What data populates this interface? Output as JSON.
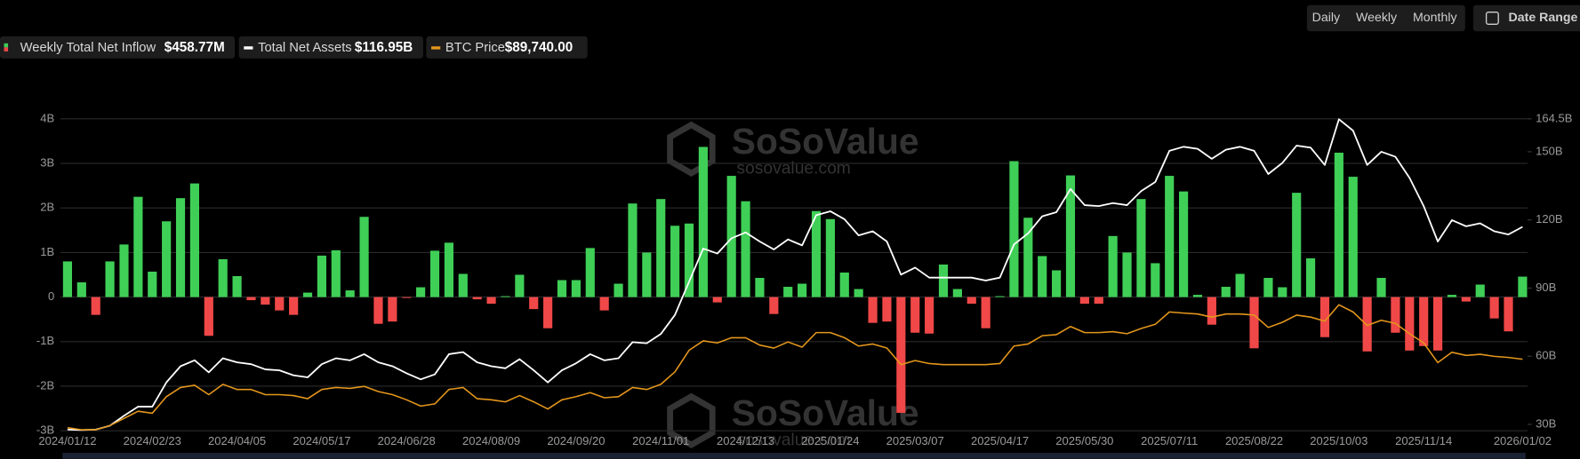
{
  "controls": {
    "intervals": [
      "Daily",
      "Weekly",
      "Monthly"
    ],
    "active_interval": 1,
    "date_range": "Date Range"
  },
  "watermark": {
    "brand": "SoSoValue",
    "site": "sosovalue.com"
  },
  "chart_data": {
    "type": "combo",
    "categories": [
      "2024/01/12",
      null,
      null,
      null,
      null,
      null,
      "2024/02/23",
      null,
      null,
      null,
      null,
      null,
      "2024/04/05",
      null,
      null,
      null,
      null,
      null,
      "2024/05/17",
      null,
      null,
      null,
      null,
      null,
      "2024/06/28",
      null,
      null,
      null,
      null,
      null,
      "2024/08/09",
      null,
      null,
      null,
      null,
      null,
      "2024/09/20",
      null,
      null,
      null,
      null,
      null,
      "2024/11/01",
      null,
      null,
      null,
      null,
      null,
      "2024/12/13",
      null,
      null,
      null,
      null,
      null,
      "2025/01/24",
      null,
      null,
      null,
      null,
      null,
      "2025/03/07",
      null,
      null,
      null,
      null,
      null,
      "2025/04/17",
      null,
      null,
      null,
      null,
      null,
      "2025/05/30",
      null,
      null,
      null,
      null,
      null,
      "2025/07/11",
      null,
      null,
      null,
      null,
      null,
      "2025/08/22",
      null,
      null,
      null,
      null,
      null,
      "2025/10/03",
      null,
      null,
      null,
      null,
      null,
      "2025/11/14",
      null,
      null,
      null,
      null,
      null,
      null,
      "2026/01/02"
    ],
    "series": [
      {
        "name": "Weekly Total Net Inflow",
        "latest_label": "$458.77M",
        "type": "bar",
        "axis": "y",
        "color": "#3fcf57",
        "negative_color": "#f04848",
        "values": [
          0.8,
          0.33,
          -0.4,
          0.8,
          1.18,
          2.25,
          0.57,
          1.7,
          2.22,
          2.55,
          -0.87,
          0.85,
          0.47,
          -0.07,
          -0.17,
          -0.3,
          -0.4,
          0.1,
          0.93,
          1.05,
          0.15,
          1.8,
          -0.6,
          -0.55,
          -0.02,
          0.22,
          1.04,
          1.22,
          0.52,
          -0.05,
          -0.15,
          0.02,
          0.5,
          -0.27,
          -0.7,
          0.38,
          0.38,
          1.1,
          -0.3,
          0.3,
          2.1,
          1.0,
          2.2,
          1.6,
          1.65,
          3.37,
          -0.12,
          2.72,
          2.15,
          0.43,
          -0.38,
          0.23,
          0.3,
          1.93,
          1.75,
          0.55,
          0.18,
          -0.58,
          -0.55,
          -2.6,
          -0.8,
          -0.82,
          0.73,
          0.18,
          -0.15,
          -0.7,
          0.02,
          3.05,
          1.78,
          0.92,
          0.6,
          2.73,
          -0.15,
          -0.15,
          1.37,
          1.0,
          2.2,
          0.76,
          2.72,
          2.37,
          0.05,
          -0.62,
          0.23,
          0.52,
          -1.15,
          0.43,
          0.22,
          2.34,
          0.87,
          -0.9,
          3.24,
          2.7,
          -1.22,
          0.43,
          -0.8,
          -1.2,
          -1.1,
          -1.2,
          0.05,
          -0.1,
          0.28,
          -0.48,
          -0.77,
          0.45877
        ]
      },
      {
        "name": "Total Net Assets",
        "latest_label": "$116.95B",
        "type": "line",
        "axis": "y2",
        "color": "#ffffff",
        "values": [
          27.7,
          27.5,
          27.7,
          29.4,
          33.8,
          37.8,
          37.8,
          48.5,
          55.6,
          58.2,
          52.9,
          59.1,
          57.3,
          56.5,
          54.2,
          53.8,
          51.6,
          50.7,
          56.5,
          59.1,
          58.2,
          60.9,
          57.3,
          55.6,
          52.5,
          49.8,
          52.0,
          60.9,
          61.8,
          57.3,
          55.6,
          54.7,
          58.7,
          53.8,
          48.5,
          53.8,
          56.9,
          60.9,
          58.2,
          59.1,
          66.2,
          65.7,
          69.8,
          78.2,
          92.8,
          107.4,
          105.2,
          111.9,
          114.5,
          110.5,
          107.0,
          111.4,
          108.8,
          122.1,
          123.8,
          120.3,
          113.2,
          115.0,
          110.5,
          95.9,
          99.0,
          94.6,
          94.6,
          94.6,
          94.6,
          93.3,
          94.6,
          109.2,
          114.1,
          121.6,
          123.4,
          133.6,
          126.5,
          126.1,
          127.4,
          126.5,
          132.7,
          136.7,
          150.4,
          152.2,
          151.3,
          146.9,
          150.9,
          152.2,
          150.4,
          140.2,
          145.1,
          152.7,
          151.8,
          144.2,
          164.3,
          159.3,
          144.2,
          150.0,
          147.8,
          138.5,
          126.1,
          110.5,
          119.9,
          117.2,
          118.5,
          115.0,
          113.6,
          116.95
        ]
      },
      {
        "name": "BTC Price",
        "latest_label": "$89,740.00",
        "type": "line",
        "axis": "y3",
        "color": "#e3961c",
        "values": [
          45960,
          44600,
          44600,
          47300,
          51900,
          56500,
          55200,
          65800,
          71700,
          73100,
          67100,
          73700,
          70400,
          70400,
          67100,
          67100,
          66500,
          64500,
          70400,
          71700,
          71100,
          72400,
          69100,
          67100,
          63800,
          59800,
          61200,
          70400,
          71700,
          64500,
          63800,
          62500,
          66500,
          62500,
          57900,
          63800,
          65800,
          68400,
          65100,
          65800,
          71700,
          70400,
          73700,
          81700,
          95500,
          101500,
          100200,
          103500,
          103500,
          98800,
          96900,
          100800,
          97500,
          106800,
          106800,
          103500,
          98200,
          99500,
          96900,
          86300,
          88900,
          87000,
          86300,
          86300,
          86300,
          86300,
          87000,
          98200,
          99500,
          104800,
          105500,
          110700,
          106800,
          106800,
          107400,
          106100,
          109400,
          112100,
          120000,
          119300,
          118700,
          116700,
          118700,
          118700,
          118000,
          110100,
          113400,
          118000,
          116700,
          114100,
          124600,
          120000,
          111400,
          114700,
          112700,
          106100,
          100200,
          87600,
          94200,
          92200,
          92900,
          91600,
          90900,
          89740
        ]
      }
    ],
    "ylim": [
      -3,
      4
    ],
    "yticks": [
      {
        "value": -3,
        "label": "-3B"
      },
      {
        "value": -2,
        "label": "-2B"
      },
      {
        "value": -1,
        "label": "-1B"
      },
      0,
      {
        "value": 1,
        "label": "1B"
      },
      {
        "value": 2,
        "label": "2B"
      },
      {
        "value": 3,
        "label": "3B"
      },
      {
        "value": 4,
        "label": "4B"
      }
    ],
    "y2lim": [
      27.2,
      164.5
    ],
    "y2ticks": [
      {
        "value": 30,
        "label": "30B"
      },
      {
        "value": 60,
        "label": "60B"
      },
      {
        "value": 90,
        "label": "90B"
      },
      {
        "value": 120,
        "label": "120B"
      },
      {
        "value": 150,
        "label": "150B"
      },
      {
        "value": 164.5,
        "label": "164.5B"
      }
    ],
    "y3lim": [
      44000,
      243600
    ],
    "grid": true
  }
}
